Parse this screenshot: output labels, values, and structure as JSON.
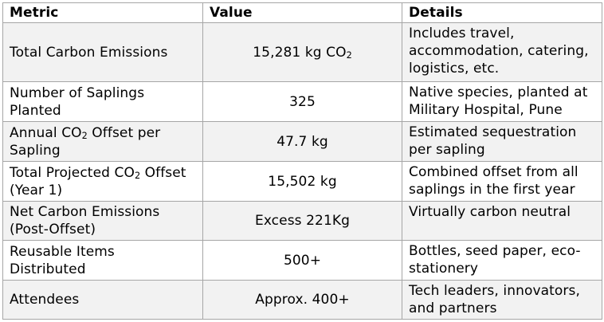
{
  "table": {
    "columns": [
      {
        "label": "Metric"
      },
      {
        "label": "Value"
      },
      {
        "label": "Details"
      }
    ],
    "rows": [
      {
        "metric": "Total Carbon Emissions",
        "value": "15,281 kg CO₂",
        "details": "Includes travel,\naccommodation, catering,\nlogistics, etc."
      },
      {
        "metric": "Number of Saplings\nPlanted",
        "value": "325",
        "details": "Native species, planted at\nMilitary Hospital, Pune"
      },
      {
        "metric": "Annual CO₂ Offset per\nSapling",
        "value": "47.7 kg",
        "details": "Estimated sequestration\nper sapling"
      },
      {
        "metric": "Total Projected CO₂ Offset\n(Year 1)",
        "value": "15,502 kg",
        "details": "Combined offset from all\nsaplings in the first year"
      },
      {
        "metric": "Net Carbon Emissions\n(Post-Offset)",
        "value": "Excess 221Kg",
        "details": "Virtually carbon neutral"
      },
      {
        "metric": "Reusable Items\nDistributed",
        "value": "500+",
        "details": "Bottles, seed paper, eco-\nstationery"
      },
      {
        "metric": "Attendees",
        "value": "Approx. 400+",
        "details": "Tech leaders, innovators,\nand partners"
      }
    ],
    "style": {
      "border_color": "#a6a6a6",
      "band_color": "#f2f2f2",
      "text_color": "#000000"
    }
  }
}
